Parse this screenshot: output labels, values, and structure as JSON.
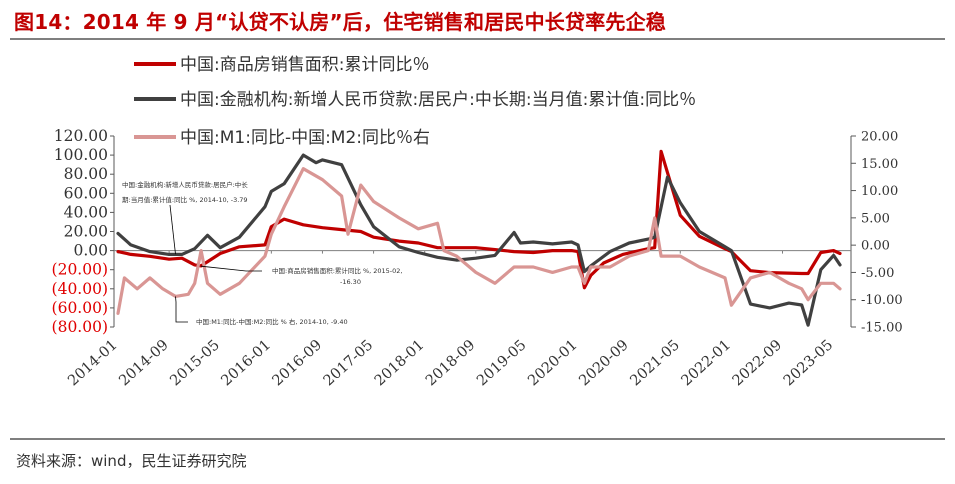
{
  "header": {
    "title": "图14：2014 年 9 月“认贷不认房”后，住宅销售和居民中长贷率先企稳"
  },
  "footer": {
    "source": "资料来源：wind，民生证券研究院"
  },
  "chart_data": {
    "type": "line",
    "title": "图14：2014 年 9 月“认贷不认房”后，住宅销售和居民中长贷率先企稳",
    "x_labels": [
      "2014-01",
      "2014-09",
      "2015-05",
      "2016-01",
      "2016-09",
      "2017-05",
      "2018-01",
      "2018-09",
      "2019-05",
      "2020-01",
      "2020-09",
      "2021-05",
      "2022-01",
      "2022-09",
      "2023-05"
    ],
    "left_axis": {
      "ylim": [
        -80,
        120
      ],
      "ticks": [
        120,
        100,
        80,
        60,
        40,
        20,
        0,
        -20,
        -40,
        -60,
        -80
      ],
      "tick_labels": [
        "120.00",
        "100.00",
        "80.00",
        "60.00",
        "40.00",
        "20.00",
        "0.00",
        "(20.00)",
        "(40.00)",
        "(60.00)",
        "(80.00)"
      ],
      "negative_color": "#e00000",
      "positive_color": "#333333"
    },
    "right_axis": {
      "ylim": [
        -15,
        20
      ],
      "ticks": [
        20,
        15,
        10,
        5,
        0,
        -5,
        -10,
        -15
      ],
      "tick_labels": [
        "20.00",
        "15.00",
        "10.00",
        "5.00",
        "0.00",
        "-5.00",
        "-10.00",
        "-15.00"
      ]
    },
    "series": [
      {
        "name": "中国:商品房销售面积:累计同比％",
        "color": "#c00000",
        "axis": "left",
        "points": [
          [
            "2014-01",
            -1
          ],
          [
            "2014-03",
            -4
          ],
          [
            "2014-06",
            -6
          ],
          [
            "2014-09",
            -9
          ],
          [
            "2014-11",
            -8
          ],
          [
            "2015-01",
            -15
          ],
          [
            "2015-02",
            -16
          ],
          [
            "2015-05",
            -3
          ],
          [
            "2015-08",
            4
          ],
          [
            "2015-12",
            6
          ],
          [
            "2016-01",
            25
          ],
          [
            "2016-03",
            33
          ],
          [
            "2016-06",
            27
          ],
          [
            "2016-09",
            24
          ],
          [
            "2016-12",
            22
          ],
          [
            "2017-03",
            20
          ],
          [
            "2017-05",
            14
          ],
          [
            "2017-09",
            10
          ],
          [
            "2017-12",
            8
          ],
          [
            "2018-03",
            3
          ],
          [
            "2018-06",
            3
          ],
          [
            "2018-09",
            3
          ],
          [
            "2018-12",
            1
          ],
          [
            "2019-03",
            -1
          ],
          [
            "2019-06",
            -2
          ],
          [
            "2019-09",
            0
          ],
          [
            "2019-12",
            0
          ],
          [
            "2020-01",
            -1
          ],
          [
            "2020-02",
            -39
          ],
          [
            "2020-03",
            -26
          ],
          [
            "2020-05",
            -13
          ],
          [
            "2020-08",
            -4
          ],
          [
            "2020-12",
            2
          ],
          [
            "2021-01",
            3
          ],
          [
            "2021-02",
            104
          ],
          [
            "2021-05",
            37
          ],
          [
            "2021-08",
            15
          ],
          [
            "2021-12",
            2
          ],
          [
            "2022-01",
            -1
          ],
          [
            "2022-04",
            -21
          ],
          [
            "2022-07",
            -23
          ],
          [
            "2022-12",
            -24
          ],
          [
            "2023-01",
            -24
          ],
          [
            "2023-03",
            -2
          ],
          [
            "2023-05",
            0
          ],
          [
            "2023-06",
            -3
          ]
        ]
      },
      {
        "name": "中国:金融机构:新增人民币贷款:居民户:中长期:当月值:累计值:同比％",
        "color": "#404040",
        "axis": "left",
        "points": [
          [
            "2014-01",
            18
          ],
          [
            "2014-03",
            6
          ],
          [
            "2014-06",
            -1
          ],
          [
            "2014-09",
            -4
          ],
          [
            "2014-10",
            -4
          ],
          [
            "2014-11",
            -4
          ],
          [
            "2015-01",
            2
          ],
          [
            "2015-03",
            16
          ],
          [
            "2015-05",
            3
          ],
          [
            "2015-08",
            14
          ],
          [
            "2015-12",
            46
          ],
          [
            "2016-01",
            62
          ],
          [
            "2016-03",
            70
          ],
          [
            "2016-06",
            100
          ],
          [
            "2016-08",
            92
          ],
          [
            "2016-09",
            95
          ],
          [
            "2016-12",
            90
          ],
          [
            "2017-03",
            48
          ],
          [
            "2017-05",
            25
          ],
          [
            "2017-09",
            4
          ],
          [
            "2017-12",
            -2
          ],
          [
            "2018-03",
            -7
          ],
          [
            "2018-06",
            -10
          ],
          [
            "2018-09",
            -8
          ],
          [
            "2018-12",
            -5
          ],
          [
            "2019-03",
            19
          ],
          [
            "2019-04",
            8
          ],
          [
            "2019-06",
            9
          ],
          [
            "2019-09",
            7
          ],
          [
            "2019-12",
            9
          ],
          [
            "2020-01",
            6
          ],
          [
            "2020-02",
            -22
          ],
          [
            "2020-03",
            -16
          ],
          [
            "2020-06",
            -1
          ],
          [
            "2020-09",
            8
          ],
          [
            "2020-12",
            12
          ],
          [
            "2021-01",
            14
          ],
          [
            "2021-03",
            77
          ],
          [
            "2021-05",
            50
          ],
          [
            "2021-08",
            20
          ],
          [
            "2021-12",
            4
          ],
          [
            "2022-01",
            0
          ],
          [
            "2022-04",
            -56
          ],
          [
            "2022-07",
            -60
          ],
          [
            "2022-10",
            -55
          ],
          [
            "2022-12",
            -57
          ],
          [
            "2023-01",
            -78
          ],
          [
            "2023-03",
            -20
          ],
          [
            "2023-05",
            -5
          ],
          [
            "2023-06",
            -15
          ]
        ]
      },
      {
        "name": "中国:M1:同比-中国:M2:同比％右",
        "color": "#d99694",
        "axis": "right",
        "points": [
          [
            "2014-01",
            -12.5
          ],
          [
            "2014-02",
            -6
          ],
          [
            "2014-04",
            -8
          ],
          [
            "2014-06",
            -6
          ],
          [
            "2014-08",
            -8
          ],
          [
            "2014-10",
            -9.4
          ],
          [
            "2014-12",
            -9
          ],
          [
            "2015-01",
            -7
          ],
          [
            "2015-02",
            -1
          ],
          [
            "2015-03",
            -7
          ],
          [
            "2015-05",
            -9
          ],
          [
            "2015-08",
            -7
          ],
          [
            "2015-12",
            -2
          ],
          [
            "2016-01",
            2
          ],
          [
            "2016-03",
            7
          ],
          [
            "2016-06",
            14
          ],
          [
            "2016-09",
            12
          ],
          [
            "2016-12",
            9
          ],
          [
            "2017-01",
            2
          ],
          [
            "2017-03",
            11
          ],
          [
            "2017-05",
            8
          ],
          [
            "2017-09",
            5
          ],
          [
            "2017-12",
            3
          ],
          [
            "2018-03",
            4
          ],
          [
            "2018-04",
            -1
          ],
          [
            "2018-06",
            -2
          ],
          [
            "2018-09",
            -5
          ],
          [
            "2018-12",
            -7
          ],
          [
            "2019-03",
            -4
          ],
          [
            "2019-06",
            -4
          ],
          [
            "2019-09",
            -5
          ],
          [
            "2019-12",
            -4
          ],
          [
            "2020-01",
            -4
          ],
          [
            "2020-02",
            -7
          ],
          [
            "2020-03",
            -4
          ],
          [
            "2020-06",
            -4
          ],
          [
            "2020-09",
            -2
          ],
          [
            "2020-12",
            -1
          ],
          [
            "2021-01",
            5
          ],
          [
            "2021-02",
            -2
          ],
          [
            "2021-05",
            -2
          ],
          [
            "2021-08",
            -4
          ],
          [
            "2021-12",
            -6
          ],
          [
            "2022-01",
            -11
          ],
          [
            "2022-04",
            -6
          ],
          [
            "2022-07",
            -5
          ],
          [
            "2022-10",
            -7
          ],
          [
            "2022-12",
            -8
          ],
          [
            "2023-01",
            -10
          ],
          [
            "2023-03",
            -7
          ],
          [
            "2023-05",
            -7
          ],
          [
            "2023-06",
            -8
          ]
        ]
      }
    ],
    "annotations": [
      {
        "lines": [
          "中国:金融机构:新增人民币贷款:居民户:中长",
          "期:当月值:累计值:同比   %, 2014-10, -3.79"
        ]
      },
      {
        "lines": [
          "中国:商品房销售面积:累计同比   %, 2015-02,",
          "-16.30"
        ]
      },
      {
        "lines": [
          "中国:M1:同比-中国:M2:同比   % 右, 2014-10, -9.40"
        ]
      }
    ],
    "legend_position": "top",
    "grid": false
  }
}
